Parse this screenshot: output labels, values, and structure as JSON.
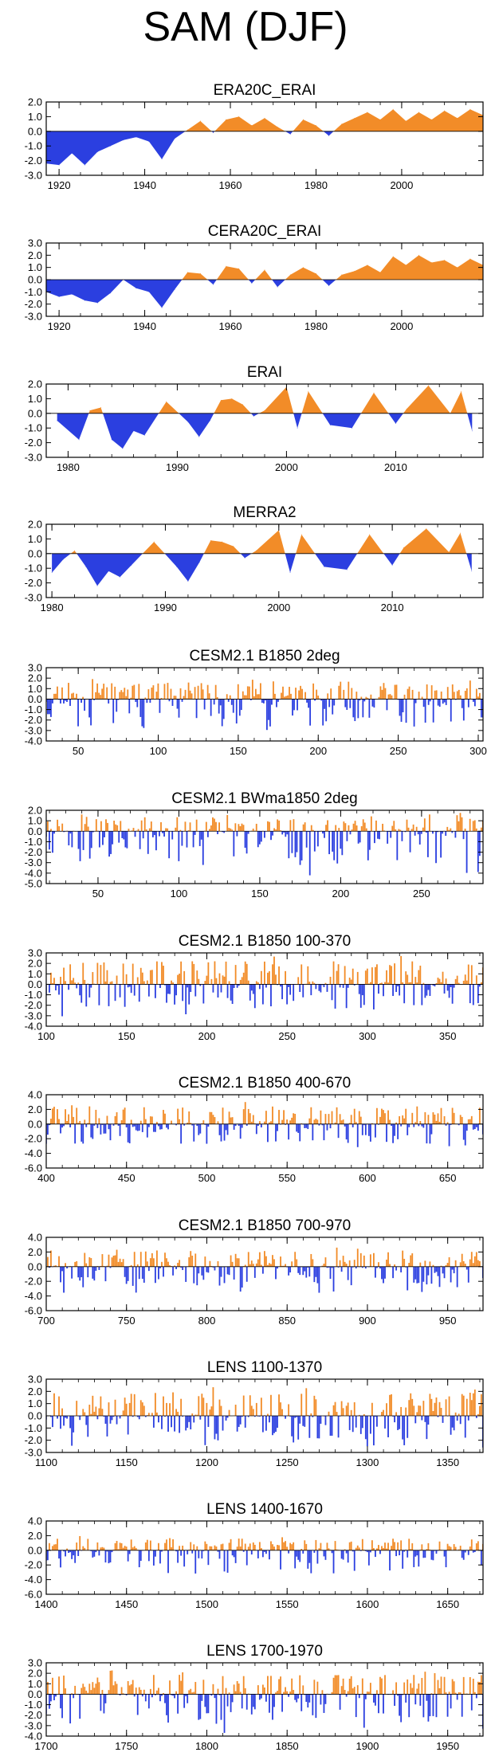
{
  "page": {
    "title": "SAM (DJF)"
  },
  "colors": {
    "positive": "#F28C28",
    "negative": "#2B3FE0",
    "axis": "#000000"
  },
  "chart_data": [
    {
      "type": "area",
      "title": "ERA20C_ERAI",
      "xlim": [
        1917,
        2019
      ],
      "ylim": [
        -3,
        2
      ],
      "yticks": [
        "2.0",
        "1.0",
        "0.0",
        "-1.0",
        "-2.0",
        "-3.0"
      ],
      "xticks": [
        1920,
        1940,
        1960,
        1980,
        2000
      ],
      "x": [
        1917,
        1920,
        1923,
        1926,
        1929,
        1932,
        1935,
        1938,
        1941,
        1944,
        1947,
        1950,
        1953,
        1956,
        1959,
        1962,
        1965,
        1968,
        1971,
        1974,
        1977,
        1980,
        1983,
        1986,
        1989,
        1992,
        1995,
        1998,
        2001,
        2004,
        2007,
        2010,
        2013,
        2016,
        2019
      ],
      "values": [
        -2.2,
        -2.3,
        -1.5,
        -2.3,
        -1.4,
        -1.0,
        -0.6,
        -0.4,
        -0.7,
        -1.9,
        -0.5,
        0.1,
        0.7,
        -0.1,
        0.8,
        1.0,
        0.4,
        0.9,
        0.3,
        -0.2,
        0.8,
        0.4,
        -0.3,
        0.5,
        0.9,
        1.3,
        0.8,
        1.5,
        0.7,
        1.3,
        0.8,
        1.4,
        0.9,
        1.5,
        1.1
      ]
    },
    {
      "type": "area",
      "title": "CERA20C_ERAI",
      "xlim": [
        1917,
        2019
      ],
      "ylim": [
        -3,
        3
      ],
      "yticks": [
        "3.0",
        "2.0",
        "1.0",
        "0.0",
        "-1.0",
        "-2.0",
        "-3.0"
      ],
      "xticks": [
        1920,
        1940,
        1960,
        1980,
        2000
      ],
      "x": [
        1917,
        1920,
        1923,
        1926,
        1929,
        1932,
        1935,
        1938,
        1941,
        1944,
        1947,
        1950,
        1953,
        1956,
        1959,
        1962,
        1965,
        1968,
        1971,
        1974,
        1977,
        1980,
        1983,
        1986,
        1989,
        1992,
        1995,
        1998,
        2001,
        2004,
        2007,
        2010,
        2013,
        2016,
        2019
      ],
      "values": [
        -1.0,
        -1.4,
        -1.2,
        -1.7,
        -1.9,
        -1.1,
        0.0,
        -0.7,
        -1.0,
        -2.3,
        -0.8,
        0.6,
        0.5,
        -0.4,
        1.1,
        0.9,
        -0.3,
        0.8,
        -0.6,
        0.4,
        1.0,
        0.5,
        -0.5,
        0.4,
        0.7,
        1.2,
        0.6,
        1.9,
        1.2,
        2.0,
        1.4,
        1.6,
        1.0,
        1.7,
        1.2
      ]
    },
    {
      "type": "area",
      "title": "ERAI",
      "xlim": [
        1978,
        2018
      ],
      "ylim": [
        -3,
        2
      ],
      "yticks": [
        "2.0",
        "1.0",
        "0.0",
        "-1.0",
        "-2.0",
        "-3.0"
      ],
      "xticks": [
        1980,
        1990,
        2000,
        2010
      ],
      "x": [
        1979,
        1981,
        1982,
        1983,
        1984,
        1985,
        1986,
        1987,
        1989,
        1991,
        1992,
        1993,
        1994,
        1995,
        1996,
        1997,
        1998,
        2000,
        2001,
        2002,
        2004,
        2006,
        2008,
        2010,
        2011,
        2013,
        2015,
        2016,
        2017
      ],
      "values": [
        -0.5,
        -1.8,
        0.2,
        0.4,
        -1.8,
        -2.4,
        -1.2,
        -1.5,
        0.8,
        -0.6,
        -1.6,
        -0.5,
        0.9,
        1.0,
        0.6,
        -0.2,
        0.2,
        1.8,
        -1.0,
        1.5,
        -0.8,
        -1.0,
        1.4,
        -0.7,
        0.3,
        1.9,
        0.0,
        1.5,
        -1.2
      ]
    },
    {
      "type": "area",
      "title": "MERRA2",
      "xlim": [
        1979.5,
        2018
      ],
      "ylim": [
        -3,
        2
      ],
      "yticks": [
        "2.0",
        "1.0",
        "0.0",
        "-1.0",
        "-2.0",
        "-3.0"
      ],
      "xticks": [
        1980,
        1990,
        2000,
        2010
      ],
      "x": [
        1980,
        1981,
        1982,
        1983,
        1984,
        1985,
        1986,
        1987,
        1989,
        1991,
        1992,
        1993,
        1994,
        1995,
        1996,
        1997,
        1998,
        2000,
        2001,
        2002,
        2004,
        2006,
        2008,
        2010,
        2011,
        2013,
        2015,
        2016,
        2017
      ],
      "values": [
        -1.3,
        -0.4,
        0.2,
        -0.9,
        -2.2,
        -1.2,
        -1.6,
        -0.8,
        0.8,
        -0.9,
        -1.9,
        -0.6,
        0.9,
        0.8,
        0.5,
        -0.3,
        0.2,
        1.6,
        -1.3,
        1.3,
        -0.9,
        -1.1,
        1.3,
        -0.8,
        0.4,
        1.7,
        0.1,
        1.4,
        -1.2
      ]
    },
    {
      "type": "bar",
      "title": "CESM2.1 B1850 2deg",
      "xlim": [
        30,
        303
      ],
      "ylim": [
        -4,
        3
      ],
      "yticks": [
        "3.0",
        "2.0",
        "1.0",
        "0.0",
        "-1.0",
        "-2.0",
        "-3.0",
        "-4.0"
      ],
      "xticks": [
        50,
        100,
        150,
        200,
        250,
        300
      ],
      "seed": 11,
      "min": -3.5,
      "max": 2.1
    },
    {
      "type": "bar",
      "title": "CESM2.1 BWma1850 2deg",
      "xlim": [
        18,
        288
      ],
      "ylim": [
        -5,
        2
      ],
      "yticks": [
        "2.0",
        "1.0",
        "0.0",
        "-1.0",
        "-2.0",
        "-3.0",
        "-4.0",
        "-5.0"
      ],
      "xticks": [
        50,
        100,
        150,
        200,
        250
      ],
      "seed": 23,
      "min": -4.3,
      "max": 1.8
    },
    {
      "type": "bar",
      "title": "CESM2.1 B1850 100-370",
      "xlim": [
        100,
        372
      ],
      "ylim": [
        -4,
        3
      ],
      "yticks": [
        "3.0",
        "2.0",
        "1.0",
        "0.0",
        "-1.0",
        "-2.0",
        "-3.0",
        "-4.0"
      ],
      "xticks": [
        100,
        150,
        200,
        250,
        300,
        350
      ],
      "seed": 37,
      "min": -3.2,
      "max": 2.8
    },
    {
      "type": "bar",
      "title": "CESM2.1 B1850 400-670",
      "xlim": [
        400,
        672
      ],
      "ylim": [
        -6,
        4
      ],
      "yticks": [
        "4.0",
        "2.0",
        "0.0",
        "-2.0",
        "-4.0",
        "-6.0"
      ],
      "xticks": [
        400,
        450,
        500,
        550,
        600,
        650
      ],
      "seed": 41,
      "min": -3.6,
      "max": 3.0
    },
    {
      "type": "bar",
      "title": "CESM2.1 B1850 700-970",
      "xlim": [
        700,
        972
      ],
      "ylim": [
        -6,
        4
      ],
      "yticks": [
        "4.0",
        "2.0",
        "0.0",
        "-2.0",
        "-4.0",
        "-6.0"
      ],
      "xticks": [
        700,
        750,
        800,
        850,
        900,
        950
      ],
      "seed": 53,
      "min": -3.8,
      "max": 2.6
    },
    {
      "type": "bar",
      "title": "LENS 1100-1370",
      "xlim": [
        1100,
        1372
      ],
      "ylim": [
        -3,
        3
      ],
      "yticks": [
        "3.0",
        "2.0",
        "1.0",
        "0.0",
        "-1.0",
        "-2.0",
        "-3.0"
      ],
      "xticks": [
        1100,
        1150,
        1200,
        1250,
        1300,
        1350
      ],
      "seed": 67,
      "min": -2.6,
      "max": 2.4
    },
    {
      "type": "bar",
      "title": "LENS 1400-1670",
      "xlim": [
        1400,
        1672
      ],
      "ylim": [
        -6,
        4
      ],
      "yticks": [
        "4.0",
        "2.0",
        "0.0",
        "-2.0",
        "-4.0",
        "-6.0"
      ],
      "xticks": [
        1400,
        1450,
        1500,
        1550,
        1600,
        1650
      ],
      "seed": 71,
      "min": -3.4,
      "max": 2.0
    },
    {
      "type": "bar",
      "title": "LENS 1700-1970",
      "xlim": [
        1700,
        1972
      ],
      "ylim": [
        -4,
        3
      ],
      "yticks": [
        "3.0",
        "2.0",
        "1.0",
        "0.0",
        "-1.0",
        "-2.0",
        "-3.0",
        "-4.0"
      ],
      "xticks": [
        1700,
        1750,
        1800,
        1850,
        1900,
        1950
      ],
      "seed": 83,
      "min": -3.7,
      "max": 2.3
    }
  ]
}
